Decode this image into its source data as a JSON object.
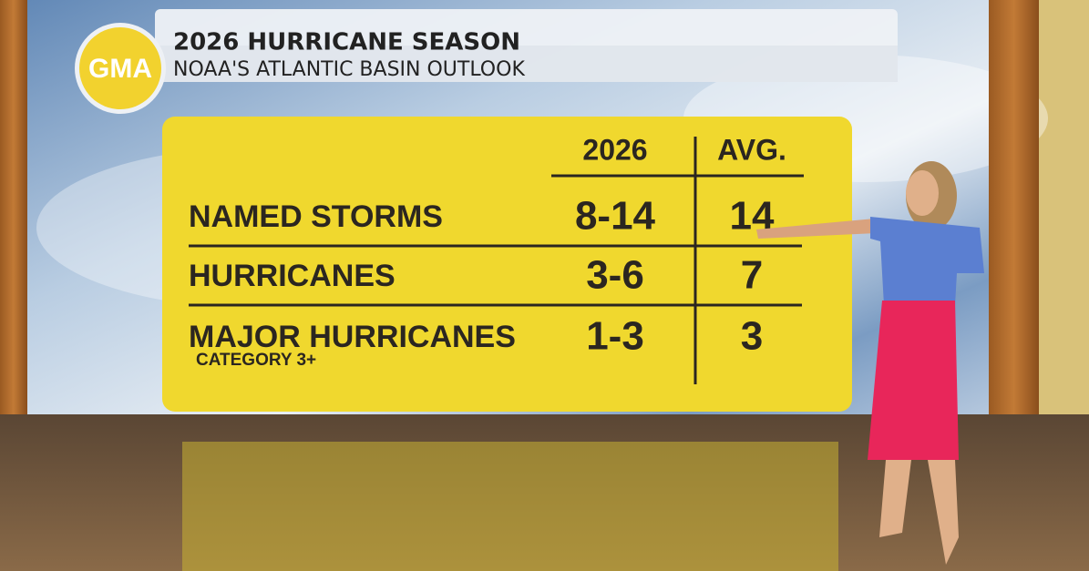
{
  "header": {
    "logo": "GMA",
    "title": "2026 HURRICANE SEASON",
    "subtitle": "NOAA'S ATLANTIC BASIN OUTLOOK"
  },
  "table": {
    "columns": [
      "2026",
      "AVG."
    ],
    "rows": [
      {
        "label": "NAMED STORMS",
        "values": [
          "8-14",
          "14"
        ]
      },
      {
        "label": "HURRICANES",
        "values": [
          "3-6",
          "7"
        ]
      },
      {
        "label": "MAJOR HURRICANES",
        "note": "CATEGORY 3+",
        "values": [
          "1-3",
          "3"
        ]
      }
    ]
  }
}
